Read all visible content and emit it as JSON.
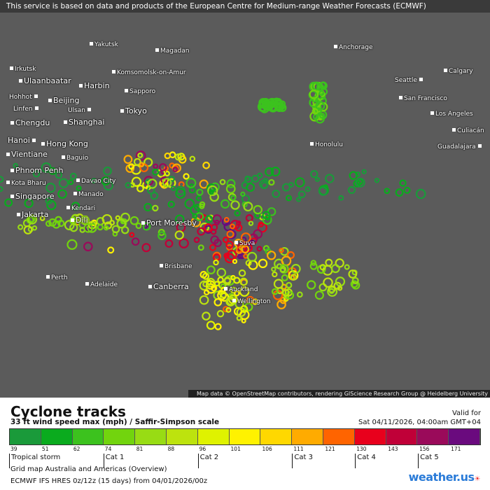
{
  "notice": "This service is based on data and products of the European Centre for Medium-range Weather Forecasts (ECMWF)",
  "attribution": "Map data © OpenStreetMap contributors, rendering GIScience Research Group @ Heidelberg University",
  "cities": [
    "Yakutsk",
    "Magadan",
    "Irkutsk",
    "Ulaanbaatar",
    "Komsomolsk-on-Amur",
    "Harbin",
    "Sapporo",
    "Hohhot",
    "Beijing",
    "Linfen",
    "Ulsan",
    "Tokyo",
    "Chengdu",
    "Shanghai",
    "Hanoi",
    "Hong Kong",
    "Vientiane",
    "Baguio",
    "Phnom Penh",
    "Davao City",
    "Kota Bharu",
    "Manado",
    "Singapore",
    "Kendari",
    "Jakarta",
    "Dili",
    "Port Moresby",
    "Suva",
    "Brisbane",
    "Perth",
    "Adelaide",
    "Canberra",
    "Auckland",
    "Wellington",
    "Anchorage",
    "Calgary",
    "Seattle",
    "San Francisco",
    "Los Angeles",
    "Culiacán",
    "Guadalajara",
    "Honolulu"
  ],
  "legend": {
    "title": "Cyclone tracks",
    "subtitle": "33 ft wind speed max (mph) / Saffir-Simpson scale",
    "valid_label": "Valid for",
    "valid_time": "Sat 04/11/2026, 04:00am GMT+04",
    "colors": [
      "#1a9a3a",
      "#0aab1e",
      "#3cc21e",
      "#72d40e",
      "#98dc14",
      "#bde30e",
      "#dff200",
      "#fff200",
      "#ffd800",
      "#ffab00",
      "#ff6400",
      "#e8001c",
      "#c00038",
      "#9a0a5a",
      "#6a0a7e"
    ],
    "ticks": [
      "39",
      "51",
      "62",
      "74",
      "81",
      "88",
      "96",
      "101",
      "106",
      "111",
      "121",
      "130",
      "143",
      "156",
      "171"
    ],
    "categories": [
      "Tropical storm",
      "Cat 1",
      "Cat 2",
      "Cat 3",
      "Cat 4",
      "Cat 5"
    ],
    "grid": "Grid map Australia and Americas (Overview)",
    "model": "ECMWF IFS HRES 0z/12z (15 days) from  04/01/2026/00z",
    "logo": "weather.us"
  }
}
